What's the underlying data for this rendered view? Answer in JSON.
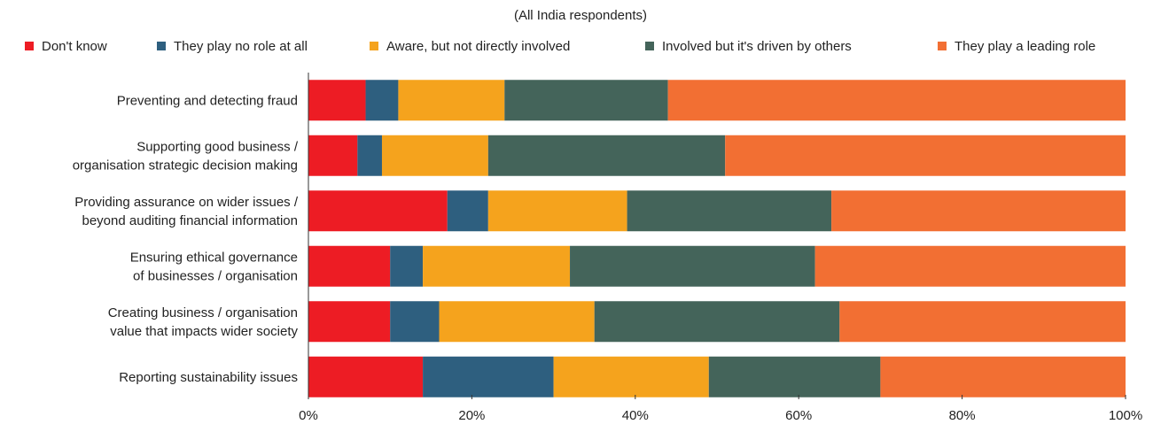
{
  "chart_data": {
    "type": "bar",
    "orientation": "horizontal",
    "stacked": true,
    "subtitle": "(All India respondents)",
    "categories": [
      [
        "Preventing and detecting fraud"
      ],
      [
        "Supporting good business /",
        "organisation strategic decision making"
      ],
      [
        "Providing assurance on wider issues /",
        "beyond auditing financial information"
      ],
      [
        "Ensuring ethical governance",
        "of businesses / organisation"
      ],
      [
        "Creating business / organisation",
        "value that impacts wider society"
      ],
      [
        "Reporting sustainability issues"
      ]
    ],
    "series": [
      {
        "name": "Don't know",
        "color": "#ed1c24",
        "values": [
          7,
          6,
          17,
          10,
          10,
          14
        ]
      },
      {
        "name": "They play no role at all",
        "color": "#2e5f7f",
        "values": [
          4,
          3,
          5,
          4,
          6,
          16
        ]
      },
      {
        "name": "Aware, but not directly involved",
        "color": "#f5a31d",
        "values": [
          13,
          13,
          17,
          18,
          19,
          19
        ]
      },
      {
        "name": "Involved but it's driven by others",
        "color": "#44645a",
        "values": [
          20,
          29,
          25,
          30,
          30,
          21
        ]
      },
      {
        "name": "They play a leading role",
        "color": "#f26f33",
        "values": [
          56,
          49,
          36,
          38,
          35,
          30
        ]
      }
    ],
    "xlim": [
      0,
      100
    ],
    "ticks": [
      "0%",
      "20%",
      "40%",
      "60%",
      "80%",
      "100%"
    ],
    "tick_values": [
      0,
      20,
      40,
      60,
      80,
      100
    ],
    "legend_position": "top",
    "grid": false
  }
}
